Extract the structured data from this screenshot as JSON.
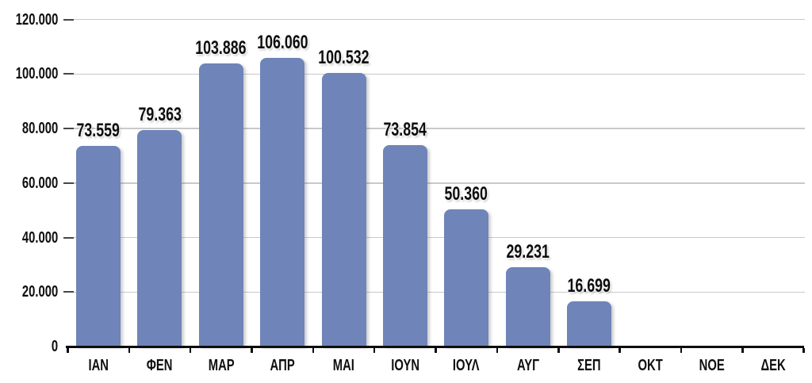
{
  "chart_data": {
    "type": "bar",
    "title": "",
    "xlabel": "",
    "ylabel": "",
    "categories": [
      "ΙΑΝ",
      "ΦΕΝ",
      "ΜΑΡ",
      "ΑΠΡ",
      "ΜΑΙ",
      "ΙΟΥΝ",
      "ΙΟΥΛ",
      "ΑΥΓ",
      "ΣΕΠ",
      "ΟΚΤ",
      "ΝΟΕ",
      "ΔΕΚ"
    ],
    "values": [
      73559,
      79363,
      103886,
      106060,
      100532,
      73854,
      50360,
      29231,
      16699,
      0,
      0,
      0
    ],
    "value_labels": [
      "73.559",
      "79.363",
      "103.886",
      "106.060",
      "100.532",
      "73.854",
      "50.360",
      "29.231",
      "16.699",
      "",
      "",
      ""
    ],
    "ylim": [
      0,
      120000
    ],
    "y_ticks": [
      0,
      20000,
      40000,
      60000,
      80000,
      100000,
      120000
    ],
    "y_tick_labels": [
      "0",
      "20.000",
      "40.000",
      "60.000",
      "80.000",
      "100.000",
      "120.000"
    ],
    "grid": true,
    "legend": false,
    "colors": {
      "bar": "#6F84B8",
      "gridline": "#c9c9cb",
      "y_tick_dash": "#474747",
      "axis": "#0d0d0d",
      "text": "#0f0f0f"
    }
  }
}
